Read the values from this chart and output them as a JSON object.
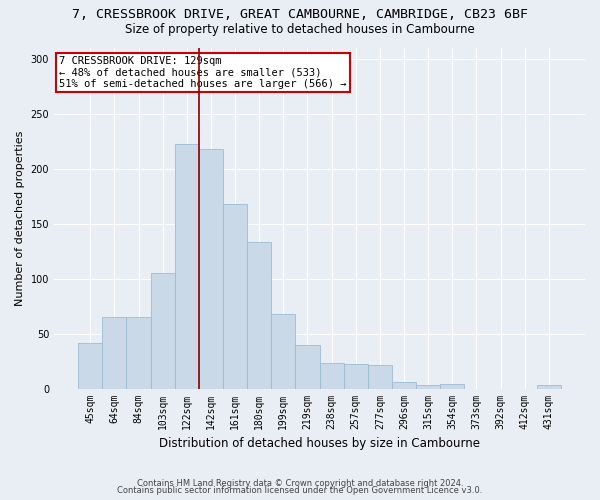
{
  "title1": "7, CRESSBROOK DRIVE, GREAT CAMBOURNE, CAMBRIDGE, CB23 6BF",
  "title2": "Size of property relative to detached houses in Cambourne",
  "xlabel": "Distribution of detached houses by size in Cambourne",
  "ylabel": "Number of detached properties",
  "categories": [
    "45sqm",
    "64sqm",
    "84sqm",
    "103sqm",
    "122sqm",
    "142sqm",
    "161sqm",
    "180sqm",
    "199sqm",
    "219sqm",
    "238sqm",
    "257sqm",
    "277sqm",
    "296sqm",
    "315sqm",
    "354sqm",
    "373sqm",
    "392sqm",
    "412sqm",
    "431sqm"
  ],
  "values": [
    41,
    65,
    65,
    105,
    222,
    218,
    168,
    133,
    68,
    40,
    23,
    22,
    21,
    6,
    3,
    4,
    0,
    0,
    0,
    3
  ],
  "bar_color": "#c9d9e8",
  "bar_edge_color": "#9bbcd4",
  "vline_x": 4.5,
  "annotation_text": "7 CRESSBROOK DRIVE: 129sqm\n← 48% of detached houses are smaller (533)\n51% of semi-detached houses are larger (566) →",
  "annotation_box_color": "white",
  "annotation_box_edge_color": "#cc0000",
  "vline_color": "#8b0000",
  "ylim": [
    0,
    310
  ],
  "yticks": [
    0,
    50,
    100,
    150,
    200,
    250,
    300
  ],
  "footer1": "Contains HM Land Registry data © Crown copyright and database right 2024.",
  "footer2": "Contains public sector information licensed under the Open Government Licence v3.0.",
  "bg_color": "#e8eef4",
  "title1_fontsize": 9.5,
  "title2_fontsize": 8.5,
  "ylabel_fontsize": 8,
  "xlabel_fontsize": 8.5,
  "tick_fontsize": 7,
  "ann_fontsize": 7.5,
  "footer_fontsize": 6
}
